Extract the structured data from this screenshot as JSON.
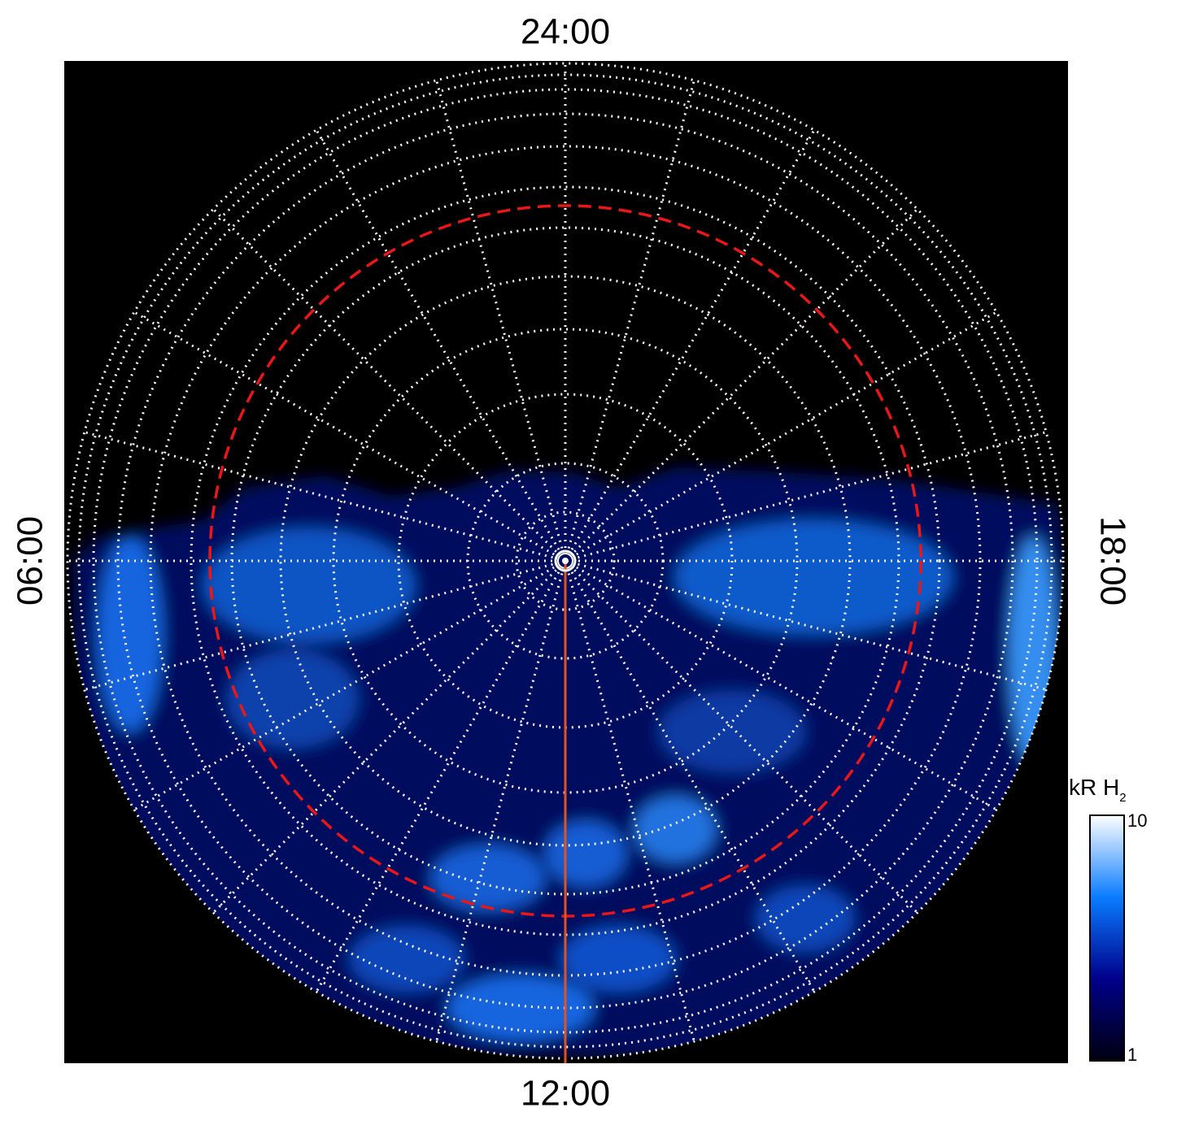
{
  "chart_data": {
    "type": "polar-map",
    "local_time_labels": {
      "top": "24:00",
      "bottom": "12:00",
      "left": "06:00",
      "right": "18:00"
    },
    "colorbar": {
      "label": "kR H",
      "label_subscript": "2",
      "lim": [
        1,
        10
      ],
      "ticks": [
        1,
        10
      ],
      "log": true,
      "colors": [
        "#000010",
        "#00008b",
        "#0a7cff",
        "#ffffff"
      ]
    }
  }
}
